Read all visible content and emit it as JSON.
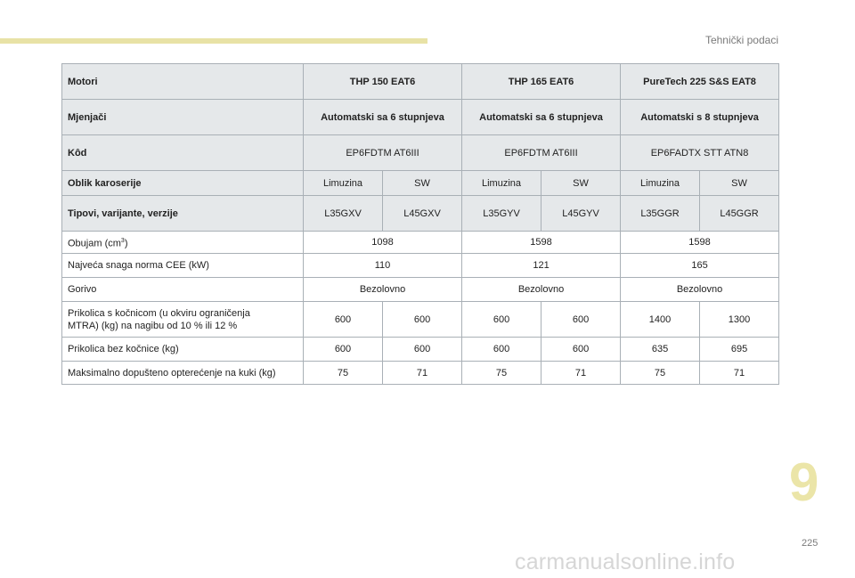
{
  "header": {
    "section_title": "Tehnički podaci"
  },
  "footer": {
    "chapter": "9",
    "page": "225",
    "watermark": "carmanualsonline.info"
  },
  "table": {
    "motori": {
      "label": "Motori",
      "values": [
        "THP 150 EAT6",
        "THP 165 EAT6",
        "PureTech 225 S&S EAT8"
      ]
    },
    "mjenjaci": {
      "label": "Mjenjači",
      "values": [
        "Automatski sa 6 stupnjeva",
        "Automatski sa 6 stupnjeva",
        "Automatski s 8 stupnjeva"
      ]
    },
    "kod": {
      "label": "Kôd",
      "values": [
        "EP6FDTM AT6III",
        "EP6FDTM AT6III",
        "EP6FADTX STT ATN8"
      ]
    },
    "oblik": {
      "label": "Oblik karoserije",
      "values": [
        "Limuzina",
        "SW",
        "Limuzina",
        "SW",
        "Limuzina",
        "SW"
      ]
    },
    "tipovi": {
      "label": "Tipovi, varijante, verzije",
      "values": [
        "L35GXV",
        "L45GXV",
        "L35GYV",
        "L45GYV",
        "L35GGR",
        "L45GGR"
      ]
    },
    "obujam": {
      "label": "Obujam (cm",
      "sup": "3",
      "label_end": ")",
      "values": [
        "1098",
        "1598",
        "1598"
      ]
    },
    "snaga": {
      "label": "Najveća snaga norma CEE (kW)",
      "values": [
        "110",
        "121",
        "165"
      ]
    },
    "gorivo": {
      "label": "Gorivo",
      "values": [
        "Bezolovno",
        "Bezolovno",
        "Bezolovno"
      ]
    },
    "prikolica_s": {
      "label_line1": "Prikolica s kočnicom (u okviru ograničenja",
      "label_line2": "MTRA) (kg) na nagibu od 10 % ili 12 %",
      "values": [
        "600",
        "600",
        "600",
        "600",
        "1400",
        "1300"
      ]
    },
    "prikolica_bez": {
      "label": "Prikolica bez kočnice (kg)",
      "values": [
        "600",
        "600",
        "600",
        "600",
        "635",
        "695"
      ]
    },
    "kuka": {
      "label": "Maksimalno dopušteno opterećenje na kuki (kg)",
      "values": [
        "75",
        "71",
        "75",
        "71",
        "75",
        "71"
      ]
    }
  }
}
